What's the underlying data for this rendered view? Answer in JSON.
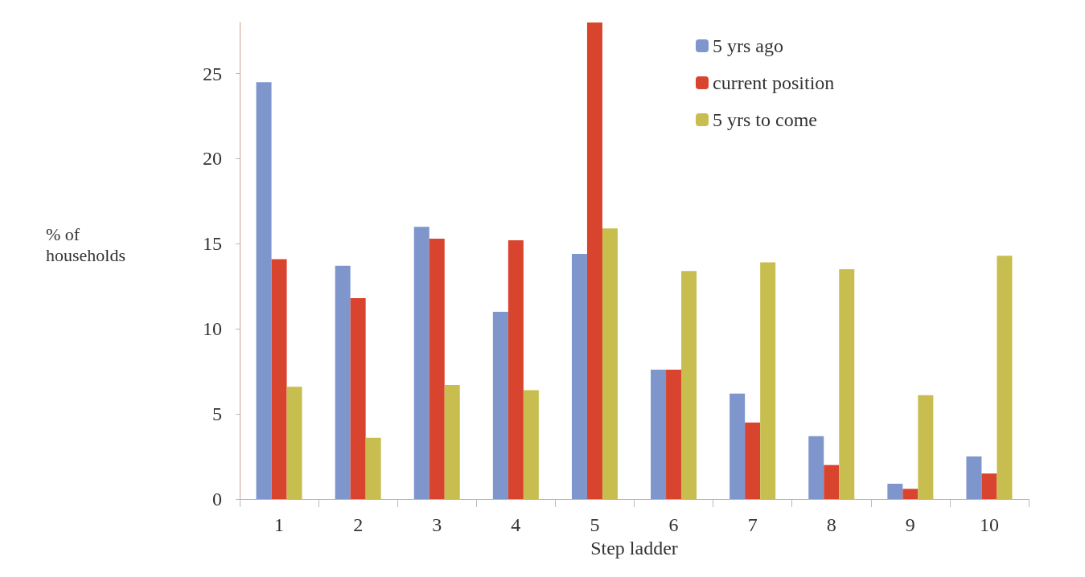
{
  "chart_data": {
    "type": "bar",
    "xlabel": "Step ladder",
    "ylabel": "% of\nhouseholds",
    "categories": [
      "1",
      "2",
      "3",
      "4",
      "5",
      "6",
      "7",
      "8",
      "9",
      "10"
    ],
    "series": [
      {
        "name": "5 yrs ago",
        "color": "#7f96cc",
        "values": [
          24.5,
          13.7,
          16.0,
          11.0,
          14.4,
          7.6,
          6.2,
          3.7,
          0.9,
          2.5
        ]
      },
      {
        "name": "current position",
        "color": "#d9442e",
        "values": [
          14.1,
          11.8,
          15.3,
          15.2,
          28,
          7.6,
          4.5,
          2.0,
          0.6,
          1.5
        ]
      },
      {
        "name": "5 yrs to come",
        "color": "#c7be4f",
        "values": [
          6.6,
          3.6,
          6.7,
          6.4,
          15.9,
          13.4,
          13.9,
          13.5,
          6.1,
          14.3
        ]
      }
    ],
    "ylim": [
      0,
      28
    ],
    "yticks": [
      0,
      5,
      10,
      15,
      20,
      25
    ],
    "grid": false,
    "legend": "top right"
  }
}
